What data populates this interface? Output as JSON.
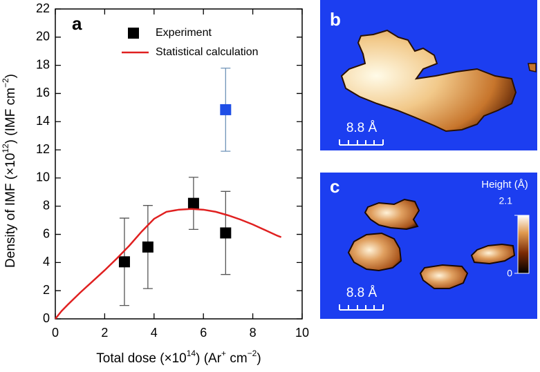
{
  "chart_data": {
    "type": "scatter-line",
    "panel_label": "a",
    "xlabel": [
      {
        "text": "Total dose (×10"
      },
      {
        "text": "14",
        "sup": true
      },
      {
        "text": ") (Ar"
      },
      {
        "text": "+",
        "sup": true
      },
      {
        "text": " cm"
      },
      {
        "text": "−2",
        "sup": true
      },
      {
        "text": ")"
      }
    ],
    "ylabel": [
      {
        "text": "Density of IMF (×10"
      },
      {
        "text": "12",
        "sup": true
      },
      {
        "text": ") (IMF cm"
      },
      {
        "text": "−2",
        "sup": true
      },
      {
        "text": ")"
      }
    ],
    "xlim": [
      0,
      10
    ],
    "xticks": [
      0,
      2,
      4,
      6,
      8,
      10
    ],
    "ylim": [
      0,
      22
    ],
    "yticks": [
      0,
      2,
      4,
      6,
      8,
      10,
      12,
      14,
      16,
      18,
      20,
      22
    ],
    "legend": "upper-center",
    "series": [
      {
        "name": "Experiment",
        "kind": "points",
        "color": "#000000",
        "error_color": "#555555",
        "x": [
          2.8,
          3.75,
          5.6,
          6.9
        ],
        "values": [
          4.05,
          5.1,
          8.2,
          6.1
        ],
        "errors": [
          3.1,
          2.95,
          1.85,
          2.95
        ]
      },
      {
        "kind": "points",
        "color": "#1f4fe6",
        "error_color": "#6f93b8",
        "x": [
          6.9
        ],
        "values": [
          14.85
        ],
        "errors": [
          2.95
        ]
      },
      {
        "name": "Statistical calculation",
        "kind": "line",
        "color": "#e02020",
        "x": [
          0,
          0.25,
          0.5,
          1,
          1.5,
          2,
          2.5,
          3,
          3.5,
          4,
          4.5,
          5,
          5.5,
          6,
          6.5,
          7,
          7.5,
          8,
          8.5,
          9,
          9.15
        ],
        "values": [
          0,
          0.55,
          1.0,
          1.85,
          2.65,
          3.45,
          4.3,
          5.2,
          6.2,
          7.1,
          7.6,
          7.75,
          7.8,
          7.75,
          7.6,
          7.35,
          7.05,
          6.7,
          6.3,
          5.9,
          5.8
        ]
      }
    ]
  },
  "images": [
    {
      "label": "b",
      "scale_bar": "8.8 Å"
    },
    {
      "label": "c",
      "scale_bar": "8.8 Å",
      "colorbar": {
        "title": "Height (Å)",
        "lim": [
          0,
          2.1
        ],
        "ticks": [
          0,
          2.1
        ]
      }
    }
  ]
}
